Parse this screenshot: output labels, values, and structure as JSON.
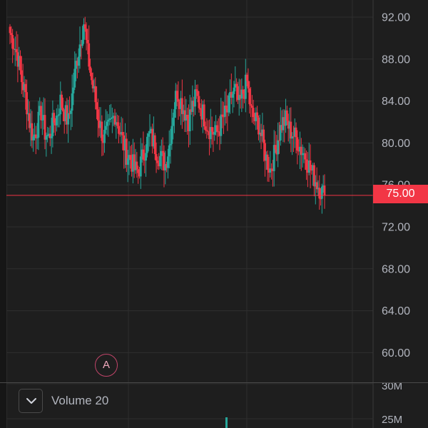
{
  "price_axis": {
    "labels": [
      "92.00",
      "88.00",
      "84.00",
      "80.00",
      "76.00",
      "72.00",
      "68.00",
      "64.00",
      "60.00"
    ],
    "values": [
      92,
      88,
      84,
      80,
      76,
      72,
      68,
      64,
      60
    ]
  },
  "current_price": {
    "label": "75.00",
    "value": 75.0
  },
  "alert_marker": {
    "label": "A"
  },
  "volume_pane": {
    "title": "Volume 20",
    "axis_labels": [
      "30M",
      "25M"
    ]
  },
  "colors": {
    "background": "#1e1e1e",
    "up": "#26a69a",
    "down": "#f23645",
    "grid": "#2e2e2e",
    "axis_text": "#b2b5be",
    "price_tag": "#f23645"
  },
  "icons": {
    "collapse": "chevron-down-icon"
  },
  "chart_data": {
    "type": "candlestick",
    "price_range": [
      56,
      93
    ],
    "close_path": [
      90.5,
      89.5,
      88.2,
      86,
      84.5,
      82,
      80.5,
      81.5,
      83,
      81,
      80.5,
      81.8,
      82.5,
      84,
      83,
      82,
      84.5,
      87.5,
      89.5,
      91.5,
      88.5,
      86,
      84,
      82,
      80.5,
      81,
      81.8,
      82.8,
      81.5,
      80.2,
      79,
      78.5,
      77.5,
      77.2,
      78.5,
      79.8,
      80.8,
      80,
      79,
      78.5,
      78,
      79.8,
      83,
      85,
      84,
      83,
      82.2,
      83.5,
      84.5,
      83.5,
      82.5,
      81.5,
      81.2,
      80.8,
      81.5,
      82.5,
      83,
      84.5,
      85,
      83.5,
      84.8,
      85.8,
      83,
      82.2,
      81.8,
      80.2,
      78.5,
      77.5,
      78.8,
      80.5,
      81.8,
      82.2,
      81.3,
      80.8,
      80.2,
      79.4,
      78.8,
      77.8,
      77,
      76.2,
      75.5,
      75
    ]
  }
}
